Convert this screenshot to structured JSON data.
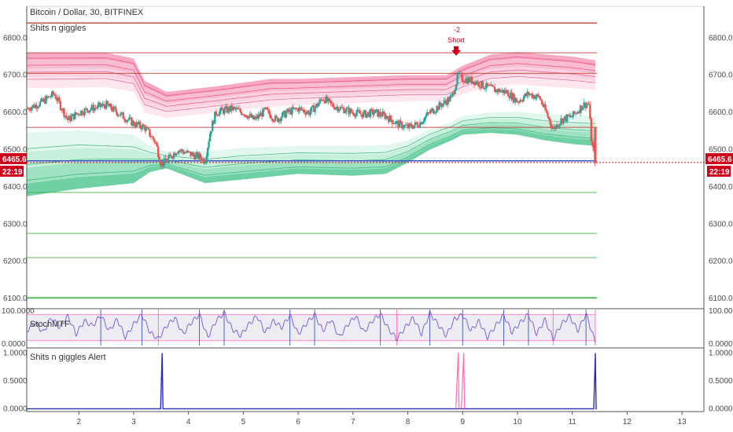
{
  "header": {
    "symbol_title": "Bitcoin / Dollar, 30, BITFINEX",
    "main_indicator": "Shits n giggles",
    "stoch_indicator": "StochMTF",
    "alert_indicator": "Shits n giggles Alert"
  },
  "price_tag": {
    "value": "6465.6",
    "countdown": "22:19"
  },
  "signal": {
    "count": "-2",
    "label": "Short"
  },
  "colors": {
    "candle_up": "#26a69a",
    "candle_down": "#ef5350",
    "upper_band": "#e8326a",
    "lower_band": "#1fae6a",
    "price_line": "#d0021b",
    "support_line": "#3a55c8",
    "stoch_line": "#7a52d1",
    "alert_line": "#2a2ab8",
    "alert_pink": "#ff69b4"
  },
  "chart_data": [
    {
      "type": "line",
      "name": "price",
      "title": "Bitcoin / Dollar, 30, BITFINEX",
      "x_ticks": [
        "2",
        "3",
        "4",
        "5",
        "6",
        "7",
        "8",
        "9",
        "10",
        "11",
        "12",
        "13"
      ],
      "y_ticks": [
        "6800.0",
        "6700.0",
        "6600.0",
        "6500.0",
        "6400.0",
        "6300.0",
        "6200.0",
        "6100.0"
      ],
      "ylim": [
        6075,
        6885
      ],
      "xlim": [
        1.05,
        13.4
      ],
      "close": [
        [
          1.05,
          6610
        ],
        [
          1.3,
          6625
        ],
        [
          1.55,
          6650
        ],
        [
          1.8,
          6580
        ],
        [
          2.0,
          6600
        ],
        [
          2.2,
          6610
        ],
        [
          2.5,
          6620
        ],
        [
          2.8,
          6590
        ],
        [
          3.0,
          6570
        ],
        [
          3.2,
          6560
        ],
        [
          3.4,
          6520
        ],
        [
          3.5,
          6460
        ],
        [
          3.6,
          6470
        ],
        [
          3.8,
          6500
        ],
        [
          4.0,
          6490
        ],
        [
          4.2,
          6480
        ],
        [
          4.3,
          6470
        ],
        [
          4.4,
          6550
        ],
        [
          4.5,
          6600
        ],
        [
          4.8,
          6610
        ],
        [
          5.0,
          6600
        ],
        [
          5.2,
          6580
        ],
        [
          5.4,
          6605
        ],
        [
          5.6,
          6580
        ],
        [
          5.8,
          6600
        ],
        [
          6.0,
          6610
        ],
        [
          6.2,
          6600
        ],
        [
          6.35,
          6620
        ],
        [
          6.45,
          6640
        ],
        [
          6.6,
          6620
        ],
        [
          6.8,
          6610
        ],
        [
          7.0,
          6600
        ],
        [
          7.2,
          6595
        ],
        [
          7.4,
          6600
        ],
        [
          7.6,
          6590
        ],
        [
          7.8,
          6570
        ],
        [
          8.0,
          6560
        ],
        [
          8.2,
          6570
        ],
        [
          8.4,
          6600
        ],
        [
          8.6,
          6620
        ],
        [
          8.8,
          6640
        ],
        [
          8.92,
          6700
        ],
        [
          9.0,
          6690
        ],
        [
          9.2,
          6685
        ],
        [
          9.4,
          6670
        ],
        [
          9.6,
          6660
        ],
        [
          9.8,
          6655
        ],
        [
          10.0,
          6630
        ],
        [
          10.2,
          6650
        ],
        [
          10.4,
          6640
        ],
        [
          10.55,
          6590
        ],
        [
          10.65,
          6555
        ],
        [
          10.8,
          6580
        ],
        [
          11.0,
          6590
        ],
        [
          11.2,
          6620
        ],
        [
          11.3,
          6625
        ],
        [
          11.35,
          6520
        ],
        [
          11.42,
          6465.6
        ]
      ],
      "upper_band_outer": [
        [
          1.05,
          6760
        ],
        [
          2.5,
          6760
        ],
        [
          3.0,
          6745
        ],
        [
          3.2,
          6685
        ],
        [
          3.6,
          6655
        ],
        [
          4.5,
          6670
        ],
        [
          5.5,
          6690
        ],
        [
          6.0,
          6690
        ],
        [
          7.0,
          6695
        ],
        [
          8.0,
          6700
        ],
        [
          8.7,
          6700
        ],
        [
          9.0,
          6725
        ],
        [
          9.5,
          6755
        ],
        [
          10.0,
          6762
        ],
        [
          11.0,
          6750
        ],
        [
          11.42,
          6740
        ]
      ],
      "upper_band_inner": [
        [
          1.05,
          6665
        ],
        [
          2.5,
          6668
        ],
        [
          3.0,
          6655
        ],
        [
          3.2,
          6600
        ],
        [
          3.6,
          6585
        ],
        [
          4.5,
          6600
        ],
        [
          5.5,
          6615
        ],
        [
          6.0,
          6620
        ],
        [
          7.0,
          6625
        ],
        [
          8.0,
          6630
        ],
        [
          8.7,
          6630
        ],
        [
          9.0,
          6650
        ],
        [
          9.5,
          6670
        ],
        [
          10.0,
          6675
        ],
        [
          11.0,
          6665
        ],
        [
          11.42,
          6660
        ]
      ],
      "lower_band_inner": [
        [
          1.05,
          6545
        ],
        [
          2.0,
          6552
        ],
        [
          3.0,
          6540
        ],
        [
          3.3,
          6510
        ],
        [
          3.6,
          6495
        ],
        [
          4.3,
          6495
        ],
        [
          5.0,
          6505
        ],
        [
          6.0,
          6510
        ],
        [
          7.0,
          6510
        ],
        [
          7.6,
          6512
        ],
        [
          8.0,
          6525
        ],
        [
          8.4,
          6555
        ],
        [
          8.8,
          6575
        ],
        [
          9.0,
          6590
        ],
        [
          9.5,
          6600
        ],
        [
          10.0,
          6602
        ],
        [
          10.5,
          6595
        ],
        [
          11.0,
          6592
        ],
        [
          11.42,
          6590
        ]
      ],
      "lower_band_outer": [
        [
          1.05,
          6375
        ],
        [
          2.0,
          6395
        ],
        [
          3.0,
          6410
        ],
        [
          3.3,
          6440
        ],
        [
          3.6,
          6450
        ],
        [
          4.3,
          6410
        ],
        [
          5.0,
          6420
        ],
        [
          6.0,
          6435
        ],
        [
          7.0,
          6430
        ],
        [
          7.6,
          6435
        ],
        [
          8.0,
          6465
        ],
        [
          8.4,
          6500
        ],
        [
          8.8,
          6525
        ],
        [
          9.0,
          6540
        ],
        [
          9.5,
          6545
        ],
        [
          10.0,
          6540
        ],
        [
          10.5,
          6525
        ],
        [
          11.0,
          6515
        ],
        [
          11.42,
          6510
        ]
      ],
      "horizontal_levels": {
        "resistance": [
          6840,
          6760,
          6705,
          6560
        ],
        "support": [
          6385,
          6275,
          6210,
          6102
        ],
        "base": 6470
      },
      "signal_x": 8.95
    },
    {
      "type": "line",
      "name": "StochMTF",
      "title": "StochMTF",
      "y_ticks": [
        "100.0000",
        "0.0000"
      ],
      "ylim": [
        -5,
        105
      ],
      "values": [
        [
          1.05,
          40
        ],
        [
          1.2,
          65
        ],
        [
          1.35,
          35
        ],
        [
          1.5,
          80
        ],
        [
          1.65,
          50
        ],
        [
          1.8,
          85
        ],
        [
          1.95,
          30
        ],
        [
          2.1,
          70
        ],
        [
          2.25,
          55
        ],
        [
          2.4,
          88
        ],
        [
          2.55,
          40
        ],
        [
          2.7,
          75
        ],
        [
          2.85,
          20
        ],
        [
          3.0,
          60
        ],
        [
          3.15,
          90
        ],
        [
          3.3,
          35
        ],
        [
          3.45,
          15
        ],
        [
          3.6,
          55
        ],
        [
          3.75,
          80
        ],
        [
          3.9,
          30
        ],
        [
          4.05,
          65
        ],
        [
          4.2,
          90
        ],
        [
          4.35,
          20
        ],
        [
          4.5,
          70
        ],
        [
          4.65,
          95
        ],
        [
          4.8,
          45
        ],
        [
          4.95,
          25
        ],
        [
          5.1,
          60
        ],
        [
          5.25,
          85
        ],
        [
          5.4,
          35
        ],
        [
          5.55,
          70
        ],
        [
          5.7,
          50
        ],
        [
          5.85,
          88
        ],
        [
          6.0,
          30
        ],
        [
          6.15,
          62
        ],
        [
          6.3,
          90
        ],
        [
          6.45,
          40
        ],
        [
          6.6,
          75
        ],
        [
          6.75,
          20
        ],
        [
          6.9,
          58
        ],
        [
          7.05,
          85
        ],
        [
          7.2,
          35
        ],
        [
          7.35,
          70
        ],
        [
          7.5,
          92
        ],
        [
          7.65,
          45
        ],
        [
          7.8,
          15
        ],
        [
          7.95,
          50
        ],
        [
          8.1,
          80
        ],
        [
          8.25,
          30
        ],
        [
          8.4,
          95
        ],
        [
          8.55,
          60
        ],
        [
          8.7,
          25
        ],
        [
          8.85,
          75
        ],
        [
          9.0,
          90
        ],
        [
          9.15,
          40
        ],
        [
          9.3,
          70
        ],
        [
          9.45,
          20
        ],
        [
          9.6,
          55
        ],
        [
          9.75,
          88
        ],
        [
          9.9,
          35
        ],
        [
          10.05,
          65
        ],
        [
          10.2,
          90
        ],
        [
          10.35,
          30
        ],
        [
          10.5,
          75
        ],
        [
          10.65,
          15
        ],
        [
          10.8,
          60
        ],
        [
          10.95,
          85
        ],
        [
          11.1,
          40
        ],
        [
          11.25,
          92
        ],
        [
          11.42,
          5
        ]
      ]
    },
    {
      "type": "line",
      "name": "Shits n giggles Alert",
      "title": "Shits n giggles Alert",
      "y_ticks": [
        "1.0000",
        "0.5000",
        "0.0000"
      ],
      "ylim": [
        -0.05,
        1.05
      ],
      "blue_spikes": [
        3.52,
        11.42
      ],
      "pink_spikes": [
        8.92,
        9.02
      ]
    }
  ]
}
